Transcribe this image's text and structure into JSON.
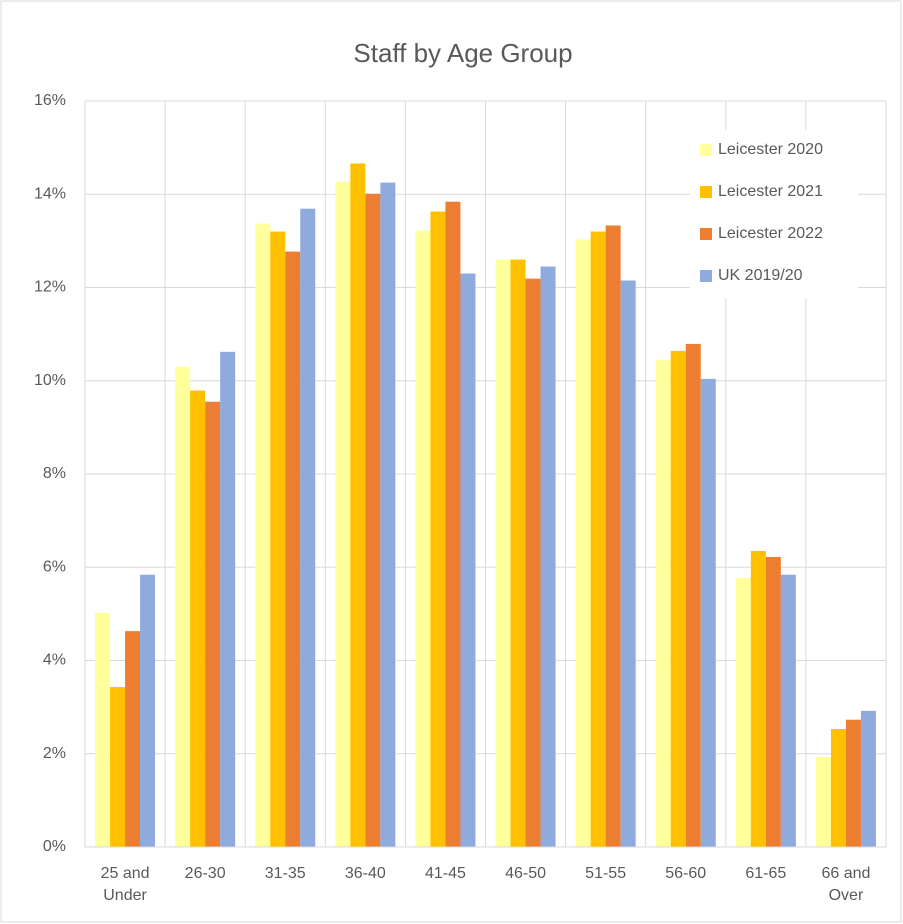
{
  "chart_data": {
    "type": "bar",
    "title": "Staff by Age Group",
    "categories": [
      "25 and Under",
      "26-30",
      "31-35",
      "36-40",
      "41-45",
      "46-50",
      "51-55",
      "56-60",
      "61-65",
      "66 and Over"
    ],
    "series": [
      {
        "name": "Leicester 2020",
        "color": "#ffff9b",
        "values": [
          5.02,
          10.3,
          13.37,
          14.27,
          13.22,
          12.6,
          13.03,
          10.45,
          5.77,
          1.93
        ]
      },
      {
        "name": "Leicester 2021",
        "color": "#ffc000",
        "values": [
          3.43,
          9.79,
          13.2,
          14.66,
          13.63,
          12.6,
          13.2,
          10.64,
          6.35,
          2.53
        ]
      },
      {
        "name": "Leicester 2022",
        "color": "#ed7d31",
        "values": [
          4.63,
          9.55,
          12.77,
          14.01,
          13.84,
          12.19,
          13.33,
          10.79,
          6.22,
          2.73
        ]
      },
      {
        "name": "UK 2019/20",
        "color": "#8faadc",
        "values": [
          5.84,
          10.62,
          13.69,
          14.25,
          12.3,
          12.45,
          12.15,
          10.04,
          5.84,
          2.92
        ]
      }
    ],
    "ylim": [
      0,
      16
    ],
    "yticks": [
      {
        "value": 0,
        "label": "0%"
      },
      {
        "value": 2,
        "label": "2%"
      },
      {
        "value": 4,
        "label": "4%"
      },
      {
        "value": 6,
        "label": "6%"
      },
      {
        "value": 8,
        "label": "8%"
      },
      {
        "value": 10,
        "label": "10%"
      },
      {
        "value": 12,
        "label": "12%"
      },
      {
        "value": 14,
        "label": "14%"
      },
      {
        "value": 16,
        "label": "16%"
      }
    ],
    "grid": true,
    "legend": "upper right"
  }
}
